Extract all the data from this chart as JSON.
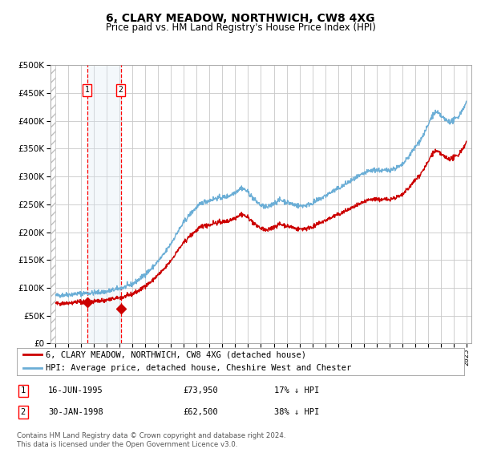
{
  "title": "6, CLARY MEADOW, NORTHWICH, CW8 4XG",
  "subtitle": "Price paid vs. HM Land Registry's House Price Index (HPI)",
  "legend_line1": "6, CLARY MEADOW, NORTHWICH, CW8 4XG (detached house)",
  "legend_line2": "HPI: Average price, detached house, Cheshire West and Chester",
  "footer": "Contains HM Land Registry data © Crown copyright and database right 2024.\nThis data is licensed under the Open Government Licence v3.0.",
  "table": [
    {
      "num": "1",
      "date": "16-JUN-1995",
      "price": "£73,950",
      "hpi": "17% ↓ HPI"
    },
    {
      "num": "2",
      "date": "30-JAN-1998",
      "price": "£62,500",
      "hpi": "38% ↓ HPI"
    }
  ],
  "sale1_year": 1995.46,
  "sale1_price": 73950,
  "sale2_year": 1998.08,
  "sale2_price": 62500,
  "hpi_color": "#6baed6",
  "price_color": "#cc0000",
  "background_color": "#ffffff",
  "grid_color": "#c8c8c8",
  "shade_color": "#dce9f5",
  "ylim": [
    0,
    500000
  ],
  "yticks": [
    0,
    50000,
    100000,
    150000,
    200000,
    250000,
    300000,
    350000,
    400000,
    450000,
    500000
  ],
  "xlim_left": 1992.6,
  "xlim_right": 2025.4
}
